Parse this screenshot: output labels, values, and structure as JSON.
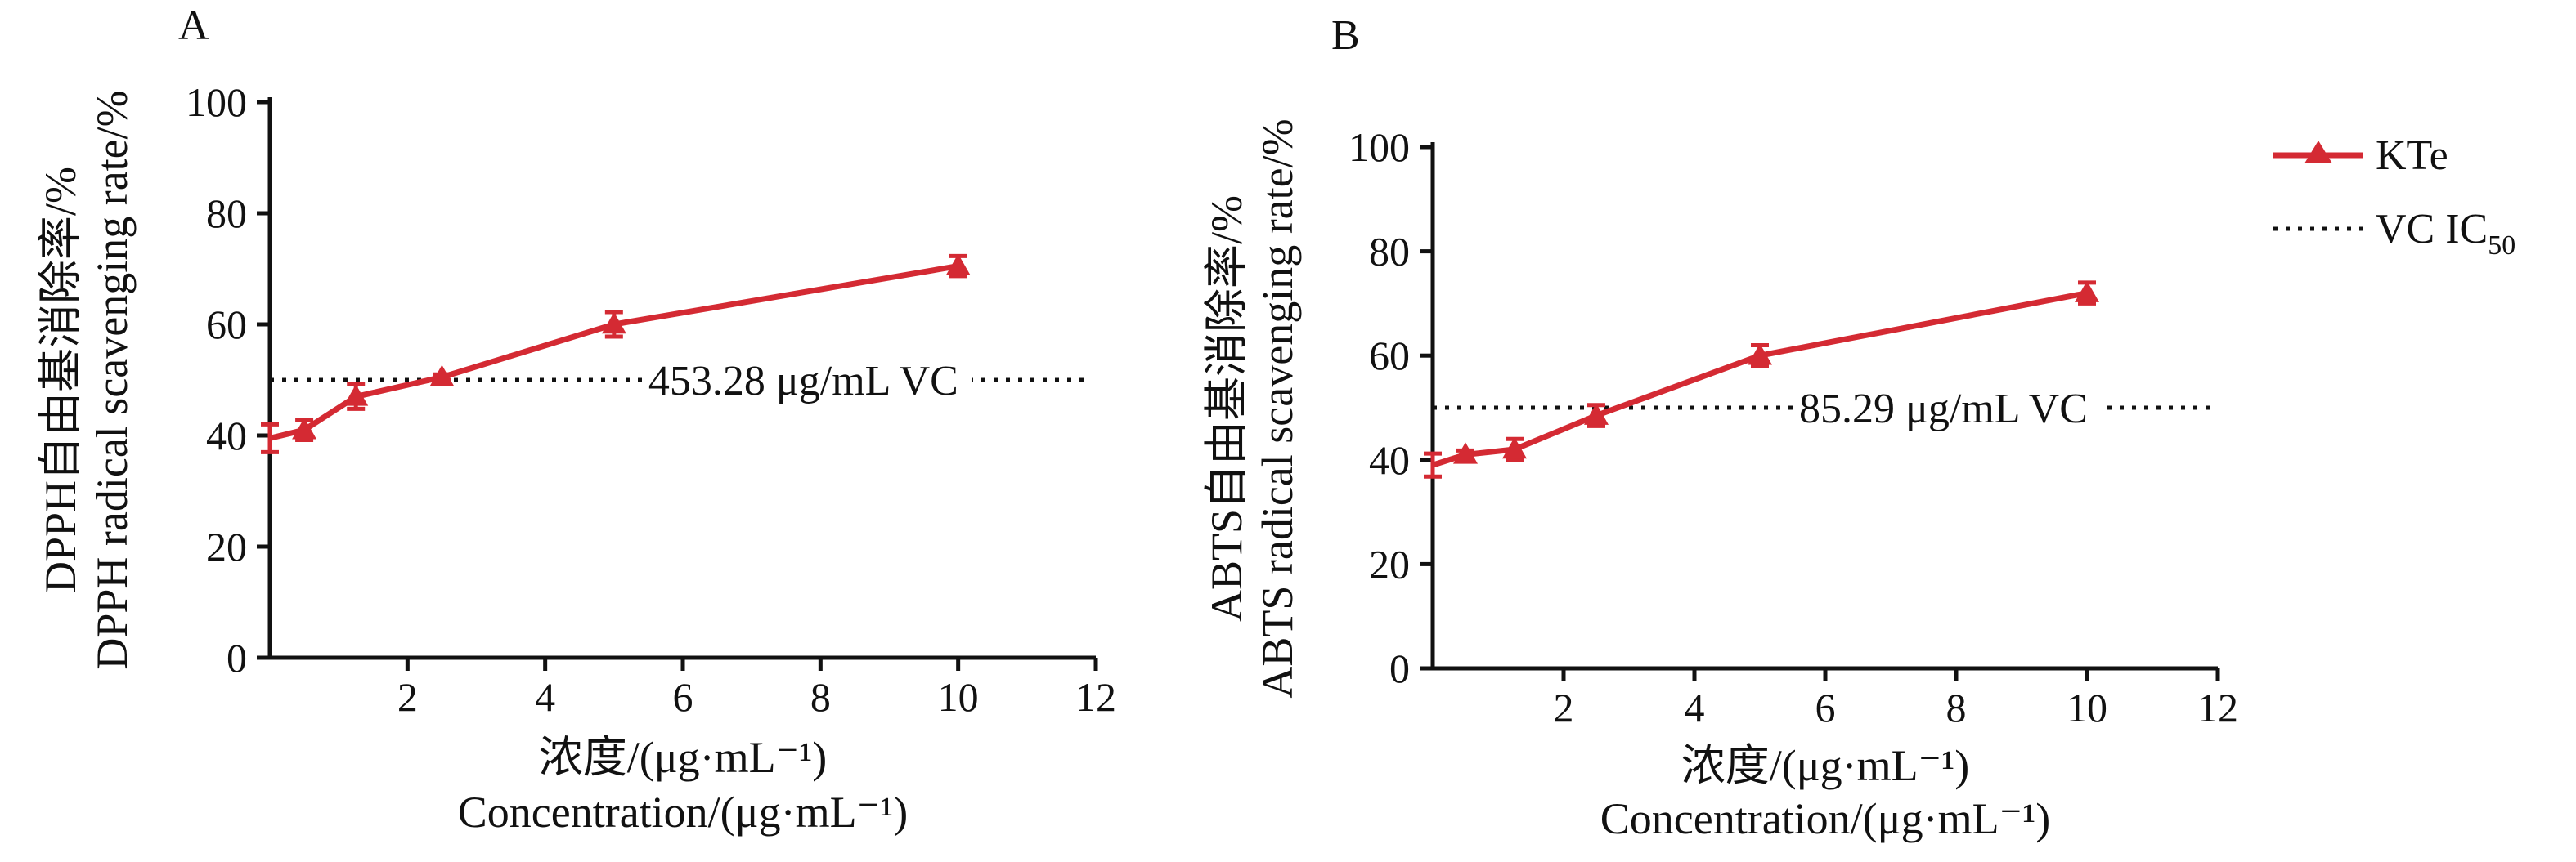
{
  "chart_data": [
    {
      "type": "line",
      "panel_label": "A",
      "x": [
        0,
        0.5,
        1.25,
        2.5,
        5,
        10
      ],
      "series": [
        {
          "name": "KTe",
          "values": [
            39.5,
            41,
            47,
            50.5,
            60,
            70.5
          ],
          "errors": [
            2.5,
            1.8,
            2.2,
            0.5,
            2.2,
            1.8
          ],
          "markers": [
            false,
            true,
            true,
            true,
            true,
            true
          ]
        }
      ],
      "reference_line": {
        "y": 50,
        "label": "453.28 μg/mL VC",
        "label_x": 5.5
      },
      "xlim": [
        0,
        12
      ],
      "ylim": [
        0,
        100
      ],
      "xticks": [
        2,
        4,
        6,
        8,
        10,
        12
      ],
      "yticks": [
        0,
        20,
        40,
        60,
        80,
        100
      ],
      "xlabel_lines": [
        "浓度/(μg·mL⁻¹)",
        "Concentration/(μg·mL⁻¹)"
      ],
      "ylabel_lines": [
        "DPPH自由基消除率/%",
        "DPPH radical scavenging rate/%"
      ]
    },
    {
      "type": "line",
      "panel_label": "B",
      "x": [
        0,
        0.5,
        1.25,
        2.5,
        5,
        10
      ],
      "series": [
        {
          "name": "KTe",
          "values": [
            39,
            41,
            42,
            48.5,
            60,
            72
          ],
          "errors": [
            2.2,
            0.8,
            2,
            2,
            2,
            2
          ],
          "markers": [
            false,
            true,
            true,
            true,
            true,
            true
          ]
        }
      ],
      "reference_line": {
        "y": 50,
        "label": "85.29 μg/mL VC",
        "label_x": 5.6
      },
      "xlim": [
        0,
        12
      ],
      "ylim": [
        0,
        100
      ],
      "xticks": [
        2,
        4,
        6,
        8,
        10,
        12
      ],
      "yticks": [
        0,
        20,
        40,
        60,
        80,
        100
      ],
      "xlabel_lines": [
        "浓度/(μg·mL⁻¹)",
        "Concentration/(μg·mL⁻¹)"
      ],
      "ylabel_lines": [
        "ABTS自由基消除率/%",
        "ABTS radical scavenging rate/%"
      ]
    }
  ],
  "legend": {
    "position": "right",
    "entries": [
      {
        "label": "KTe",
        "color": "#d42a33",
        "style": "line-triangle"
      },
      {
        "label": "VC IC",
        "subscript": "50",
        "color": "#111111",
        "style": "dotted"
      }
    ]
  }
}
